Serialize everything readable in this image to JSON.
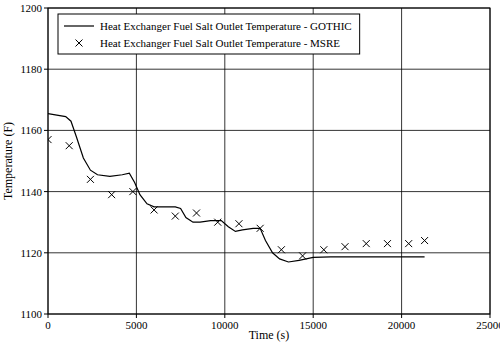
{
  "chart_data": {
    "type": "line",
    "x_label": "Time (s)",
    "y_label": "Temperature (F)",
    "xlim": [
      0,
      25000
    ],
    "ylim": [
      1100,
      1200
    ],
    "xticks": [
      0,
      5000,
      10000,
      15000,
      20000,
      25000
    ],
    "yticks": [
      1100,
      1120,
      1140,
      1160,
      1180,
      1200
    ],
    "grid": true,
    "legend": "upper left",
    "series": [
      {
        "name": "Heat Exchanger Fuel Salt Outlet Temperature - GOTHIC",
        "type": "line",
        "line_style": "solid",
        "color": "#000000",
        "x": [
          0,
          500,
          1000,
          1300,
          1600,
          2000,
          2400,
          2800,
          3500,
          4200,
          4600,
          4900,
          5200,
          5600,
          6000,
          6600,
          7200,
          7500,
          7800,
          8200,
          8600,
          9200,
          9800,
          10200,
          10600,
          11000,
          11600,
          12000,
          12300,
          12700,
          13100,
          13600,
          14200,
          15000,
          16000,
          21300
        ],
        "values": [
          1165.5,
          1165,
          1164.5,
          1163,
          1158,
          1151,
          1147,
          1145.5,
          1145,
          1145.5,
          1146,
          1143,
          1139,
          1136,
          1135,
          1135,
          1135,
          1134.5,
          1131.5,
          1130,
          1130,
          1130.5,
          1130.5,
          1128.5,
          1127,
          1127.5,
          1128,
          1128,
          1124,
          1120,
          1118,
          1117,
          1117.5,
          1118.5,
          1118.7,
          1118.7
        ]
      },
      {
        "name": "Heat Exchanger Fuel Salt Outlet Temperature - MSRE",
        "type": "scatter",
        "marker": "x",
        "color": "#000000",
        "x": [
          0,
          1200,
          2400,
          3600,
          4800,
          6000,
          7200,
          8400,
          9600,
          10800,
          12000,
          13200,
          14400,
          15600,
          16800,
          18000,
          19200,
          20400,
          21300
        ],
        "values": [
          1157,
          1155,
          1144,
          1139,
          1140,
          1134,
          1132,
          1133,
          1130,
          1129.5,
          1128,
          1121,
          1119,
          1121,
          1122,
          1123,
          1123,
          1123,
          1124
        ]
      }
    ]
  }
}
